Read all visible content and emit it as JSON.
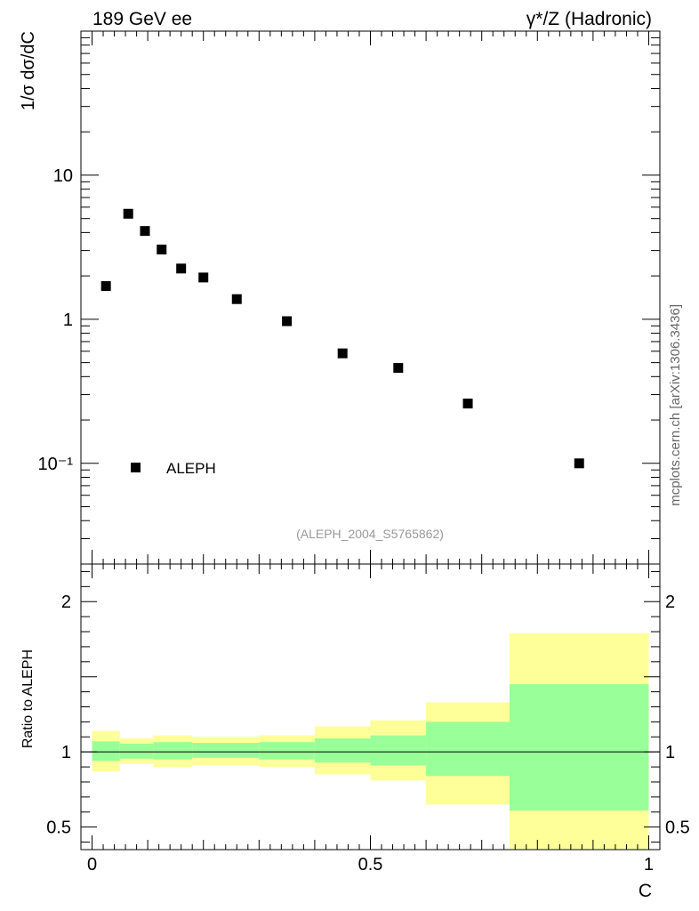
{
  "header": {
    "left": "189 GeV ee",
    "right": "γ*/Z (Hadronic)"
  },
  "side_label": "mcplots.cern.ch [arXiv:1306.3436]",
  "analysis_id": "(ALEPH_2004_S5765862)",
  "chart_data": [
    {
      "type": "scatter",
      "ylabel": "1/σ dσ/dC",
      "yscale": "log",
      "ylim": [
        0.02,
        100
      ],
      "xlim": [
        -0.02,
        1.02
      ],
      "y_tick_labels": [
        "10⁻¹",
        "1",
        "10"
      ],
      "legend": {
        "entries": [
          "ALEPH"
        ],
        "placement": "bottom-left"
      },
      "series": [
        {
          "name": "ALEPH",
          "color": "#000000",
          "x": [
            0.025,
            0.065,
            0.095,
            0.125,
            0.16,
            0.2,
            0.26,
            0.35,
            0.45,
            0.55,
            0.675,
            0.875
          ],
          "y": [
            1.7,
            5.4,
            4.1,
            3.05,
            2.25,
            1.95,
            1.38,
            0.97,
            0.58,
            0.46,
            0.26,
            0.1
          ]
        }
      ]
    },
    {
      "type": "area",
      "ylabel": "Ratio to ALEPH",
      "xlabel": "C",
      "xlim": [
        -0.02,
        1.02
      ],
      "ylim": [
        0.35,
        2.25
      ],
      "x_tick_labels": [
        "0",
        "0.5",
        "1"
      ],
      "y_tick_labels": [
        "0.5",
        "1",
        "2"
      ],
      "reference_line": 1,
      "bands": {
        "total_color": "#ffff99",
        "stat_color": "#99ff99",
        "bins": [
          {
            "lo": 0.0,
            "hi": 0.05,
            "total": [
              0.87,
              1.14
            ],
            "stat": [
              0.94,
              1.07
            ]
          },
          {
            "lo": 0.05,
            "hi": 0.11,
            "total": [
              0.92,
              1.09
            ],
            "stat": [
              0.955,
              1.055
            ]
          },
          {
            "lo": 0.11,
            "hi": 0.18,
            "total": [
              0.9,
              1.11
            ],
            "stat": [
              0.95,
              1.065
            ]
          },
          {
            "lo": 0.18,
            "hi": 0.3,
            "total": [
              0.91,
              1.1
            ],
            "stat": [
              0.96,
              1.06
            ]
          },
          {
            "lo": 0.3,
            "hi": 0.4,
            "total": [
              0.9,
              1.11
            ],
            "stat": [
              0.95,
              1.065
            ]
          },
          {
            "lo": 0.4,
            "hi": 0.5,
            "total": [
              0.85,
              1.17
            ],
            "stat": [
              0.93,
              1.09
            ]
          },
          {
            "lo": 0.5,
            "hi": 0.6,
            "total": [
              0.81,
              1.21
            ],
            "stat": [
              0.91,
              1.11
            ]
          },
          {
            "lo": 0.6,
            "hi": 0.75,
            "total": [
              0.65,
              1.33
            ],
            "stat": [
              0.84,
              1.2
            ]
          },
          {
            "lo": 0.75,
            "hi": 1.0,
            "total": [
              0.3,
              1.79
            ],
            "stat": [
              0.61,
              1.45
            ]
          }
        ]
      }
    }
  ]
}
